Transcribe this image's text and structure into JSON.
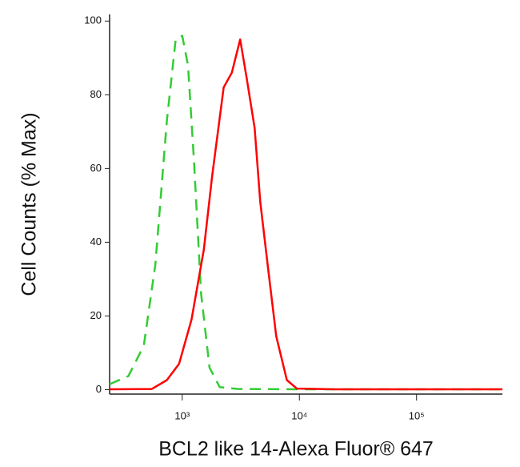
{
  "chart_data": {
    "type": "line",
    "xlabel": "BCL2 like 14-Alexa Fluor® 647",
    "ylabel": "Cell Counts (% Max)",
    "xscale": "log",
    "xlim": [
      240,
      540000
    ],
    "xticks": [
      {
        "value": 1000,
        "label": "10³"
      },
      {
        "value": 10000,
        "label": "10⁴"
      },
      {
        "value": 100000,
        "label": "10⁵"
      }
    ],
    "ylim": [
      -1.2,
      100.5
    ],
    "yticks": [
      0,
      20,
      40,
      60,
      80,
      100
    ],
    "series": [
      {
        "color": "#33cc33",
        "dashed": true,
        "x": [
          240,
          347,
          470,
          590,
          740,
          880,
          1000,
          1120,
          1260,
          1450,
          1710,
          2090,
          3000,
          10000,
          100000,
          540000
        ],
        "values": [
          1.5,
          3.7,
          12,
          34,
          73,
          95,
          96,
          88,
          62,
          26,
          6,
          0.7,
          0.2,
          0.1,
          0.1,
          0.1
        ]
      },
      {
        "color": "#ff0000",
        "dashed": false,
        "x": [
          240,
          550,
          740,
          940,
          1200,
          1530,
          1800,
          2260,
          2650,
          3120,
          3530,
          4150,
          4630,
          5450,
          6340,
          7820,
          9500,
          20000,
          100000,
          540000
        ],
        "values": [
          0.1,
          0.2,
          2.6,
          7,
          19,
          38,
          58,
          82,
          86,
          95,
          85,
          71,
          51,
          32,
          14.5,
          2.6,
          0.3,
          0.1,
          0.1,
          0.1
        ]
      }
    ]
  }
}
